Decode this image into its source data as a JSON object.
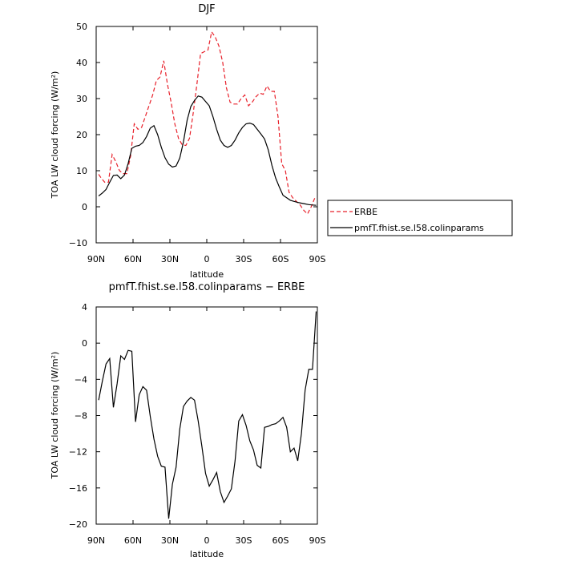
{
  "chart_data": [
    {
      "type": "line",
      "title": "DJF",
      "xlabel": "latitude",
      "ylabel": "TOA LW cloud forcing (W/m²)",
      "xlim": [
        90,
        -90
      ],
      "ylim": [
        -10,
        50
      ],
      "xticks": [
        90,
        60,
        30,
        0,
        -30,
        -60,
        -90
      ],
      "xtick_labels": [
        "90N",
        "60N",
        "30N",
        "0",
        "30S",
        "60S",
        "90S"
      ],
      "yticks": [
        -10,
        0,
        10,
        20,
        30,
        40,
        50
      ],
      "ytick_labels": [
        "−10",
        "0",
        "10",
        "20",
        "30",
        "40",
        "50"
      ],
      "legend_position": "outside-right",
      "series": [
        {
          "name": "ERBE",
          "color": "#e8202a",
          "dash": "dashed",
          "x": [
            88,
            86,
            83,
            80,
            77,
            74,
            71,
            68,
            65,
            62,
            59,
            56,
            53,
            50,
            47,
            44,
            41,
            38,
            35,
            32,
            29,
            26,
            23,
            20,
            17,
            14,
            11,
            8,
            5,
            2,
            -1,
            -4,
            -7,
            -10,
            -13,
            -16,
            -19,
            -22,
            -25,
            -28,
            -31,
            -34,
            -37,
            -40,
            -43,
            -46,
            -49,
            -52,
            -55,
            -58,
            -61,
            -64,
            -67,
            -70,
            -73,
            -76,
            -79,
            -82,
            -85,
            -88
          ],
          "y": [
            9,
            8,
            6.8,
            6.8,
            14.5,
            12.5,
            10,
            9.2,
            9.2,
            14,
            23,
            21.5,
            22,
            25,
            28,
            31,
            35,
            36,
            40.5,
            34,
            29,
            23,
            19,
            17.2,
            17,
            19,
            26,
            34,
            42.5,
            43,
            43.5,
            48.5,
            47,
            44.5,
            40,
            33,
            29,
            28.5,
            28.5,
            30,
            31,
            28,
            29,
            30.5,
            31.5,
            31.2,
            33.5,
            32,
            32,
            25,
            12,
            10,
            4,
            2.5,
            1.5,
            0.5,
            -1,
            -2,
            0,
            2.5
          ]
        },
        {
          "name": "pmfT.fhist.se.l58.colinparams",
          "color": "#000000",
          "dash": "solid",
          "x": [
            88,
            85,
            82,
            79,
            76,
            73,
            70,
            67,
            64,
            61,
            58,
            55,
            52,
            49,
            46,
            43,
            40,
            37,
            34,
            31,
            28,
            25,
            22,
            19,
            16,
            13,
            10,
            7,
            4,
            1,
            -2,
            -5,
            -8,
            -11,
            -14,
            -17,
            -20,
            -23,
            -26,
            -29,
            -32,
            -35,
            -38,
            -41,
            -44,
            -47,
            -50,
            -53,
            -56,
            -59,
            -62,
            -65,
            -68,
            -71,
            -74,
            -77,
            -80,
            -83,
            -86,
            -89
          ],
          "y": [
            3,
            3.8,
            4.8,
            6.8,
            8.7,
            8.8,
            7.8,
            8.8,
            12,
            16.2,
            16.8,
            17,
            17.8,
            19.5,
            21.8,
            22.5,
            20,
            16.5,
            13.6,
            11.8,
            11,
            11.3,
            13.5,
            18,
            24,
            27.8,
            29.5,
            30.7,
            30.4,
            29.2,
            28,
            25,
            21.5,
            18.5,
            17,
            16.5,
            17,
            18.5,
            20.5,
            22,
            23,
            23.2,
            22.8,
            21.5,
            20.2,
            18.8,
            15.8,
            11.5,
            8,
            5.5,
            3.2,
            2.5,
            1.8,
            1.5,
            1.2,
            1,
            0.8,
            0.6,
            0.5,
            0.4
          ]
        }
      ]
    },
    {
      "type": "line",
      "title": "pmfT.fhist.se.l58.colinparams − ERBE",
      "xlabel": "latitude",
      "ylabel": "TOA LW cloud forcing (W/m²)",
      "xlim": [
        90,
        -90
      ],
      "ylim": [
        -20,
        4
      ],
      "xticks": [
        90,
        60,
        30,
        0,
        -30,
        -60,
        -90
      ],
      "xtick_labels": [
        "90N",
        "60N",
        "30N",
        "0",
        "30S",
        "60S",
        "90S"
      ],
      "yticks": [
        -20,
        -16,
        -12,
        -8,
        -4,
        0,
        4
      ],
      "ytick_labels": [
        "−20",
        "−16",
        "−12",
        "−8",
        "−4",
        "0",
        "4"
      ],
      "series": [
        {
          "color": "#000000",
          "dash": "solid",
          "x": [
            88,
            85,
            82,
            79,
            76,
            73,
            70,
            67,
            64,
            61,
            58,
            55,
            52,
            49,
            46,
            43,
            40,
            37,
            34,
            31,
            28,
            25,
            22,
            19,
            16,
            13,
            10,
            7,
            4,
            1,
            -2,
            -5,
            -8,
            -11,
            -14,
            -17,
            -20,
            -23,
            -26,
            -29,
            -32,
            -35,
            -38,
            -41,
            -44,
            -47,
            -50,
            -53,
            -56,
            -59,
            -62,
            -65,
            -68,
            -71,
            -74,
            -77,
            -80,
            -83,
            -86,
            -89
          ],
          "y": [
            -6.3,
            -4.2,
            -2.3,
            -1.7,
            -7.1,
            -4.5,
            -1.4,
            -1.8,
            -0.8,
            -0.9,
            -8.7,
            -5.7,
            -4.8,
            -5.2,
            -8.1,
            -10.6,
            -12.5,
            -13.6,
            -13.7,
            -19.4,
            -15.6,
            -13.7,
            -9.5,
            -7,
            -6.4,
            -6,
            -6.3,
            -8.6,
            -11.4,
            -14.4,
            -15.8,
            -15.1,
            -14.3,
            -16.4,
            -17.6,
            -16.9,
            -16.1,
            -13,
            -8.6,
            -7.9,
            -9.1,
            -10.8,
            -11.8,
            -13.5,
            -13.8,
            -9.3,
            -9.2,
            -9,
            -8.9,
            -8.6,
            -8.2,
            -9.3,
            -12,
            -11.6,
            -13,
            -10,
            -5.2,
            -2.9,
            -2.9,
            3.5
          ]
        }
      ]
    }
  ]
}
